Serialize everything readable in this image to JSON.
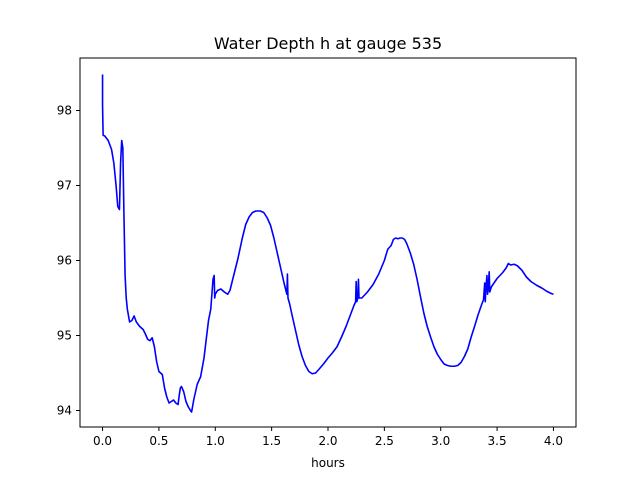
{
  "chart_data": {
    "type": "line",
    "title": "Water Depth h at gauge 535",
    "xlabel": "hours",
    "ylabel": "",
    "xlim": [
      -0.2,
      4.2
    ],
    "ylim": [
      93.78,
      98.7
    ],
    "grid": false,
    "legend": "none",
    "x_ticks": [
      0.0,
      0.5,
      1.0,
      1.5,
      2.0,
      2.5,
      3.0,
      3.5,
      4.0
    ],
    "x_tick_labels": [
      "0.0",
      "0.5",
      "1.0",
      "1.5",
      "2.0",
      "2.5",
      "3.0",
      "3.5",
      "4.0"
    ],
    "y_ticks": [
      94,
      95,
      96,
      97,
      98
    ],
    "y_tick_labels": [
      "94",
      "95",
      "96",
      "97",
      "98"
    ],
    "series": [
      {
        "color": "#0000ff",
        "points": [
          [
            0.0,
            98.48
          ],
          [
            0.0,
            98.08
          ],
          [
            0.005,
            97.67
          ],
          [
            0.02,
            97.66
          ],
          [
            0.05,
            97.6
          ],
          [
            0.08,
            97.48
          ],
          [
            0.1,
            97.3
          ],
          [
            0.12,
            97.0
          ],
          [
            0.135,
            96.72
          ],
          [
            0.15,
            96.68
          ],
          [
            0.16,
            97.3
          ],
          [
            0.17,
            97.6
          ],
          [
            0.18,
            97.5
          ],
          [
            0.19,
            96.6
          ],
          [
            0.2,
            95.8
          ],
          [
            0.21,
            95.5
          ],
          [
            0.22,
            95.35
          ],
          [
            0.24,
            95.18
          ],
          [
            0.26,
            95.2
          ],
          [
            0.28,
            95.26
          ],
          [
            0.3,
            95.18
          ],
          [
            0.33,
            95.12
          ],
          [
            0.36,
            95.08
          ],
          [
            0.38,
            95.02
          ],
          [
            0.4,
            94.95
          ],
          [
            0.42,
            94.93
          ],
          [
            0.44,
            94.97
          ],
          [
            0.46,
            94.85
          ],
          [
            0.48,
            94.65
          ],
          [
            0.5,
            94.52
          ],
          [
            0.53,
            94.48
          ],
          [
            0.55,
            94.3
          ],
          [
            0.57,
            94.18
          ],
          [
            0.59,
            94.1
          ],
          [
            0.61,
            94.12
          ],
          [
            0.63,
            94.14
          ],
          [
            0.65,
            94.1
          ],
          [
            0.67,
            94.08
          ],
          [
            0.68,
            94.2
          ],
          [
            0.69,
            94.3
          ],
          [
            0.7,
            94.32
          ],
          [
            0.72,
            94.25
          ],
          [
            0.74,
            94.12
          ],
          [
            0.76,
            94.05
          ],
          [
            0.78,
            94.0
          ],
          [
            0.79,
            93.98
          ],
          [
            0.81,
            94.15
          ],
          [
            0.84,
            94.35
          ],
          [
            0.87,
            94.45
          ],
          [
            0.9,
            94.7
          ],
          [
            0.92,
            94.95
          ],
          [
            0.94,
            95.2
          ],
          [
            0.96,
            95.35
          ],
          [
            0.97,
            95.55
          ],
          [
            0.98,
            95.75
          ],
          [
            0.99,
            95.8
          ],
          [
            0.995,
            95.5
          ],
          [
            1.0,
            95.55
          ],
          [
            1.02,
            95.6
          ],
          [
            1.05,
            95.62
          ],
          [
            1.08,
            95.58
          ],
          [
            1.11,
            95.55
          ],
          [
            1.13,
            95.6
          ],
          [
            1.16,
            95.78
          ],
          [
            1.2,
            96.02
          ],
          [
            1.24,
            96.3
          ],
          [
            1.27,
            96.48
          ],
          [
            1.3,
            96.58
          ],
          [
            1.33,
            96.64
          ],
          [
            1.36,
            96.66
          ],
          [
            1.4,
            96.66
          ],
          [
            1.43,
            96.64
          ],
          [
            1.46,
            96.57
          ],
          [
            1.49,
            96.47
          ],
          [
            1.52,
            96.3
          ],
          [
            1.55,
            96.1
          ],
          [
            1.58,
            95.9
          ],
          [
            1.61,
            95.7
          ],
          [
            1.635,
            95.55
          ],
          [
            1.64,
            95.82
          ],
          [
            1.645,
            95.5
          ],
          [
            1.66,
            95.42
          ],
          [
            1.68,
            95.28
          ],
          [
            1.71,
            95.08
          ],
          [
            1.74,
            94.88
          ],
          [
            1.77,
            94.72
          ],
          [
            1.8,
            94.6
          ],
          [
            1.83,
            94.52
          ],
          [
            1.86,
            94.49
          ],
          [
            1.89,
            94.5
          ],
          [
            1.92,
            94.55
          ],
          [
            1.96,
            94.62
          ],
          [
            2.0,
            94.7
          ],
          [
            2.04,
            94.77
          ],
          [
            2.08,
            94.85
          ],
          [
            2.12,
            94.98
          ],
          [
            2.16,
            95.12
          ],
          [
            2.2,
            95.28
          ],
          [
            2.23,
            95.4
          ],
          [
            2.245,
            95.45
          ],
          [
            2.25,
            95.72
          ],
          [
            2.255,
            95.45
          ],
          [
            2.265,
            95.5
          ],
          [
            2.27,
            95.75
          ],
          [
            2.275,
            95.5
          ],
          [
            2.3,
            95.5
          ],
          [
            2.35,
            95.58
          ],
          [
            2.4,
            95.68
          ],
          [
            2.45,
            95.82
          ],
          [
            2.5,
            96.0
          ],
          [
            2.53,
            96.15
          ],
          [
            2.56,
            96.2
          ],
          [
            2.58,
            96.28
          ],
          [
            2.6,
            96.3
          ],
          [
            2.62,
            96.29
          ],
          [
            2.64,
            96.3
          ],
          [
            2.66,
            96.3
          ],
          [
            2.68,
            96.28
          ],
          [
            2.7,
            96.22
          ],
          [
            2.73,
            96.1
          ],
          [
            2.76,
            95.95
          ],
          [
            2.79,
            95.75
          ],
          [
            2.82,
            95.52
          ],
          [
            2.85,
            95.3
          ],
          [
            2.88,
            95.12
          ],
          [
            2.91,
            94.98
          ],
          [
            2.94,
            94.85
          ],
          [
            2.97,
            94.75
          ],
          [
            3.0,
            94.68
          ],
          [
            3.03,
            94.62
          ],
          [
            3.06,
            94.6
          ],
          [
            3.09,
            94.59
          ],
          [
            3.12,
            94.59
          ],
          [
            3.15,
            94.6
          ],
          [
            3.18,
            94.64
          ],
          [
            3.21,
            94.72
          ],
          [
            3.24,
            94.82
          ],
          [
            3.27,
            94.98
          ],
          [
            3.3,
            95.12
          ],
          [
            3.33,
            95.27
          ],
          [
            3.36,
            95.4
          ],
          [
            3.38,
            95.48
          ],
          [
            3.39,
            95.7
          ],
          [
            3.395,
            95.45
          ],
          [
            3.4,
            95.62
          ],
          [
            3.41,
            95.8
          ],
          [
            3.415,
            95.55
          ],
          [
            3.42,
            95.6
          ],
          [
            3.43,
            95.85
          ],
          [
            3.435,
            95.58
          ],
          [
            3.45,
            95.65
          ],
          [
            3.5,
            95.76
          ],
          [
            3.55,
            95.84
          ],
          [
            3.58,
            95.9
          ],
          [
            3.6,
            95.96
          ],
          [
            3.62,
            95.94
          ],
          [
            3.65,
            95.95
          ],
          [
            3.68,
            95.93
          ],
          [
            3.72,
            95.87
          ],
          [
            3.76,
            95.78
          ],
          [
            3.8,
            95.72
          ],
          [
            3.85,
            95.67
          ],
          [
            3.9,
            95.63
          ],
          [
            3.94,
            95.59
          ],
          [
            3.98,
            95.56
          ],
          [
            4.0,
            95.55
          ]
        ]
      }
    ]
  }
}
